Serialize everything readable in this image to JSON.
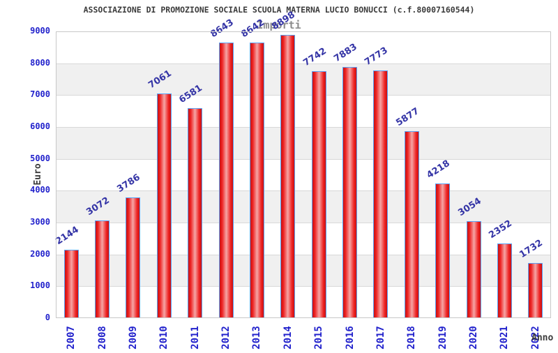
{
  "header": {
    "title": "ASSOCIAZIONE DI PROMOZIONE SOCIALE SCUOLA MATERNA LUCIO BONUCCI (c.f.80007160544)",
    "subtitle": "Importi"
  },
  "axes": {
    "y_title": "Euro",
    "x_title": "Anno"
  },
  "colors": {
    "title_text": "#3b3b3b",
    "subtitle_text": "#8c8c8c",
    "tick_text": "#2222cc",
    "value_label_text": "#3434a6",
    "bar_edge": "#5aa2f5",
    "bar_fill_dark": "#c91111",
    "bar_fill_mid": "#ee2222",
    "bar_fill_light": "#f5a6a6",
    "band_gray": "#f0f0f0",
    "band_white": "#ffffff",
    "gridline": "#d8d8d8",
    "plot_border": "#c8c8c8"
  },
  "chart_data": {
    "type": "bar",
    "title": "Importi",
    "xlabel": "Anno",
    "ylabel": "Euro",
    "categories": [
      "2007",
      "2008",
      "2009",
      "2010",
      "2011",
      "2012",
      "2013",
      "2014",
      "2015",
      "2016",
      "2017",
      "2018",
      "2019",
      "2020",
      "2021",
      "2022"
    ],
    "values": [
      2144,
      3072,
      3786,
      7061,
      6581,
      8643,
      8642,
      8898,
      7742,
      7883,
      7773,
      5877,
      4218,
      3054,
      2352,
      1732
    ],
    "ylim": [
      0,
      9000
    ],
    "yticks": [
      0,
      1000,
      2000,
      3000,
      4000,
      5000,
      6000,
      7000,
      8000,
      9000
    ],
    "grid": true,
    "band_pattern": "alternating 1000-unit horizontal bands, white then gray from bottom",
    "legend": "none",
    "bar_labels_shown": true,
    "bar_label_rotation_deg": -33,
    "x_tick_rotation_deg": -90
  }
}
